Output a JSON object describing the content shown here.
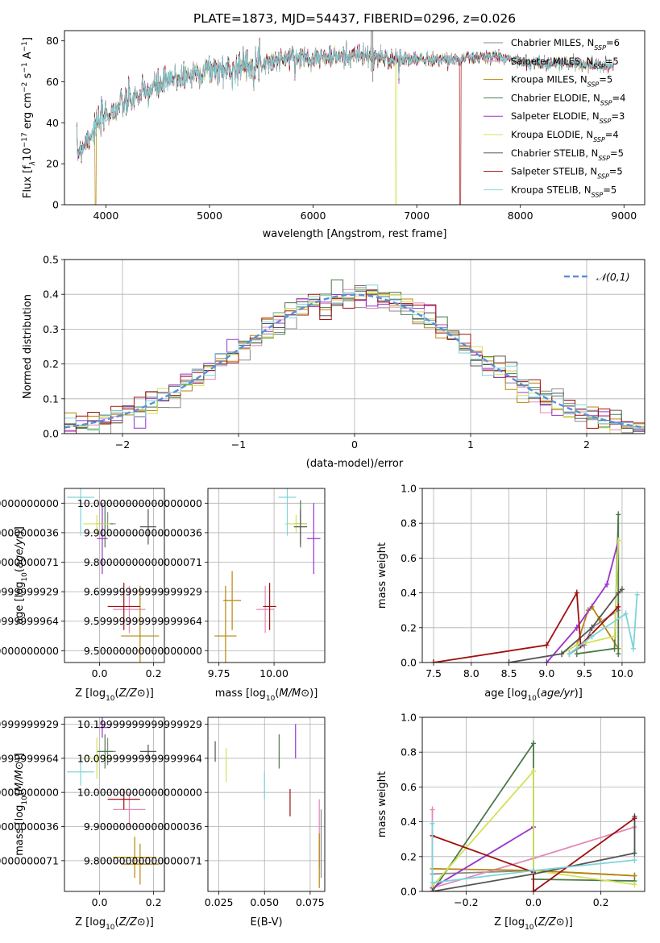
{
  "title": "PLATE=1873, MJD=54437, FIBERID=0296, z=0.026",
  "model_colors": [
    "#8a8a8a",
    "#e08ab8",
    "#b8860b",
    "#4a7a4a",
    "#9932cc",
    "#d4e157",
    "#555555",
    "#a01010",
    "#7fd3d8"
  ],
  "models": [
    {
      "name": "Chabrier MILES",
      "n": "6"
    },
    {
      "name": "Salpeter MILES",
      "n": "5"
    },
    {
      "name": "Kroupa MILES",
      "n": "5"
    },
    {
      "name": "Chabrier ELODIE",
      "n": "4"
    },
    {
      "name": "Salpeter ELODIE",
      "n": "3"
    },
    {
      "name": "Kroupa ELODIE",
      "n": "4"
    },
    {
      "name": "Chabrier STELIB",
      "n": "5"
    },
    {
      "name": "Salpeter STELIB",
      "n": "5"
    },
    {
      "name": "Kroupa STELIB",
      "n": "5"
    }
  ],
  "legend_suffix": "N",
  "legend_sub": "SSP",
  "chart_data": [
    {
      "id": "spectrum",
      "type": "line",
      "xlabel": "wavelength [Angstrom, rest frame]",
      "ylabel_parts": [
        "Flux [f",
        "λ",
        "10",
        "−17",
        " erg cm",
        "−2",
        " s",
        "−1",
        " A",
        "−1",
        "]"
      ],
      "xlim": [
        3600,
        9200
      ],
      "ylim": [
        0,
        85
      ],
      "xticks": [
        4000,
        5000,
        6000,
        7000,
        8000,
        9000
      ],
      "yticks": [
        0,
        20,
        40,
        60,
        80
      ],
      "continuum": [
        [
          3720,
          25
        ],
        [
          3800,
          31
        ],
        [
          3900,
          38
        ],
        [
          4000,
          44
        ],
        [
          4100,
          47
        ],
        [
          4200,
          50
        ],
        [
          4300,
          53
        ],
        [
          4400,
          55
        ],
        [
          4500,
          58
        ],
        [
          4600,
          60
        ],
        [
          4700,
          62
        ],
        [
          4800,
          63
        ],
        [
          4900,
          65
        ],
        [
          5000,
          66
        ],
        [
          5200,
          66
        ],
        [
          5400,
          69
        ],
        [
          5600,
          70
        ],
        [
          5800,
          72
        ],
        [
          6000,
          72
        ],
        [
          6200,
          72
        ],
        [
          6400,
          73
        ],
        [
          6600,
          72
        ],
        [
          6800,
          71
        ],
        [
          7000,
          71
        ],
        [
          7200,
          71
        ],
        [
          7400,
          71
        ],
        [
          7600,
          72
        ],
        [
          7800,
          72
        ],
        [
          8000,
          70
        ],
        [
          8200,
          69
        ],
        [
          8500,
          69
        ],
        [
          8800,
          68
        ],
        [
          8900,
          68
        ]
      ],
      "drops": [
        {
          "model": 2,
          "x": 3900
        },
        {
          "model": 5,
          "x": 6800
        },
        {
          "model": 7,
          "x": 7420
        }
      ],
      "spikes": [
        [
          6560,
          85
        ],
        [
          6575,
          80
        ]
      ]
    },
    {
      "id": "residuals",
      "type": "step histogram",
      "xlabel": "(data-model)/error",
      "ylabel": "Normed distribution",
      "xlim": [
        -2.5,
        2.5
      ],
      "ylim": [
        0,
        0.5
      ],
      "xticks": [
        -2,
        -1,
        0,
        1,
        2
      ],
      "yticks": [
        0.0,
        0.1,
        0.2,
        0.3,
        0.4,
        0.5
      ],
      "reference_label": "𝒩(0,1)",
      "bin_width": 0.1
    },
    {
      "id": "age_vs_Z",
      "type": "scatter errorbar",
      "xlabel": "Z [log10(Z/Z⊙)]",
      "ylabel": "age [log10(age/yr)]",
      "xlim": [
        -0.13,
        0.24
      ],
      "ylim": [
        9.46,
        10.05
      ],
      "xticks": [
        0.0,
        0.2
      ],
      "yticks": [
        9.5,
        9.6,
        9.7,
        9.8,
        9.9,
        10.0
      ],
      "points": [
        {
          "m": 0,
          "x": 0.03,
          "y": 9.93,
          "xe": 0.03,
          "ye": 0.04
        },
        {
          "m": 1,
          "x": 0.11,
          "y": 9.64,
          "xe": 0.06,
          "ye": 0.08
        },
        {
          "m": 2,
          "x": 0.15,
          "y": 9.55,
          "xe": 0.07,
          "ye": 0.17
        },
        {
          "m": 3,
          "x": 0.02,
          "y": 9.93,
          "xe": 0.03,
          "ye": 0.08
        },
        {
          "m": 4,
          "x": 0.01,
          "y": 9.88,
          "xe": 0.02,
          "ye": 0.12
        },
        {
          "m": 5,
          "x": -0.01,
          "y": 9.93,
          "xe": 0.05,
          "ye": 0.03
        },
        {
          "m": 6,
          "x": 0.18,
          "y": 9.92,
          "xe": 0.03,
          "ye": 0.06
        },
        {
          "m": 7,
          "x": 0.09,
          "y": 9.65,
          "xe": 0.06,
          "ye": 0.08
        },
        {
          "m": 8,
          "x": -0.07,
          "y": 10.02,
          "xe": 0.05,
          "ye": 0.13
        }
      ]
    },
    {
      "id": "age_vs_mass",
      "type": "scatter errorbar",
      "xlabel": "mass [log10(M/M⊙)]",
      "ylabel": "",
      "xlim": [
        9.7,
        10.23
      ],
      "ylim": [
        9.46,
        10.05
      ],
      "xticks": [
        9.75,
        10.0
      ],
      "yticks": [
        9.5,
        9.6,
        9.7,
        9.8,
        9.9,
        10.0
      ],
      "points": [
        {
          "m": 0,
          "x": 10.12,
          "y": 9.93,
          "xe": 0.03,
          "ye": 0.04
        },
        {
          "m": 1,
          "x": 9.96,
          "y": 9.64,
          "xe": 0.04,
          "ye": 0.08
        },
        {
          "m": 2,
          "x": 9.78,
          "y": 9.55,
          "xe": 0.05,
          "ye": 0.17
        },
        {
          "m": 3,
          "x": 10.12,
          "y": 9.93,
          "xe": 0.03,
          "ye": 0.08
        },
        {
          "m": 4,
          "x": 10.18,
          "y": 9.88,
          "xe": 0.03,
          "ye": 0.12
        },
        {
          "m": 5,
          "x": 10.1,
          "y": 9.93,
          "xe": 0.05,
          "ye": 0.03
        },
        {
          "m": 6,
          "x": 10.12,
          "y": 9.92,
          "xe": 0.03,
          "ye": 0.06
        },
        {
          "m": 7,
          "x": 9.98,
          "y": 9.65,
          "xe": 0.03,
          "ye": 0.08
        },
        {
          "m": 8,
          "x": 10.06,
          "y": 10.02,
          "xe": 0.04,
          "ye": 0.13
        },
        {
          "m": 2,
          "x": 9.81,
          "y": 9.67,
          "xe": 0.04,
          "ye": 0.1
        }
      ]
    },
    {
      "id": "weight_vs_age",
      "type": "line",
      "xlabel": "age [log10(age/yr)]",
      "ylabel": "mass weight",
      "xlim": [
        7.35,
        10.3
      ],
      "ylim": [
        0,
        1.0
      ],
      "xticks": [
        7.5,
        8.0,
        8.5,
        9.0,
        9.5,
        10.0
      ],
      "yticks": [
        0.0,
        0.2,
        0.4,
        0.6,
        0.8,
        1.0
      ],
      "series": [
        {
          "m": 0,
          "x": [
            9.3,
            9.5,
            9.6,
            9.95
          ],
          "y": [
            0.05,
            0.1,
            0.2,
            0.3
          ]
        },
        {
          "m": 1,
          "x": 9.0,
          "dummy": 0
        },
        {
          "m": 2,
          "x": [
            9.4,
            9.55,
            9.6,
            9.7,
            9.95
          ],
          "y": [
            0.1,
            0.3,
            0.32,
            0.25,
            0.08
          ]
        },
        {
          "m": 3,
          "x": [
            9.4,
            9.9,
            9.95,
            9.95
          ],
          "y": [
            0.05,
            0.08,
            0.85,
            0.05
          ]
        },
        {
          "m": 4,
          "x": [
            9.0,
            9.4,
            9.8,
            9.95
          ],
          "y": [
            0.0,
            0.2,
            0.45,
            0.7
          ]
        },
        {
          "m": 5,
          "x": [
            9.2,
            9.4,
            9.9,
            9.95
          ],
          "y": [
            0.05,
            0.1,
            0.15,
            0.7
          ]
        },
        {
          "m": 6,
          "x": [
            8.5,
            9.2,
            9.6,
            9.95,
            10.0
          ],
          "y": [
            0.0,
            0.05,
            0.2,
            0.4,
            0.42
          ]
        },
        {
          "m": 7,
          "x": [
            7.5,
            9.0,
            9.4,
            9.45,
            9.95
          ],
          "y": [
            0.0,
            0.1,
            0.4,
            0.1,
            0.32
          ]
        },
        {
          "m": 8,
          "x": [
            9.3,
            9.6,
            10.05,
            10.15,
            10.2
          ],
          "y": [
            0.05,
            0.15,
            0.28,
            0.08,
            0.39
          ]
        }
      ]
    },
    {
      "id": "mass_vs_Z",
      "type": "scatter errorbar",
      "xlabel": "Z [log10(Z/Z⊙)]",
      "ylabel": "mass [log10(M/M⊙)]",
      "xlim": [
        -0.13,
        0.24
      ],
      "ylim": [
        9.71,
        10.22
      ],
      "xticks": [
        0.0,
        0.2
      ],
      "yticks": [
        9.8,
        9.9,
        10.0,
        10.1,
        10.2
      ],
      "points": [
        {
          "m": 0,
          "x": 0.03,
          "y": 10.12,
          "xe": 0.03,
          "ye": 0.04
        },
        {
          "m": 1,
          "x": 0.11,
          "y": 9.95,
          "xe": 0.06,
          "ye": 0.05
        },
        {
          "m": 2,
          "x": 0.15,
          "y": 9.79,
          "xe": 0.07,
          "ye": 0.06
        },
        {
          "m": 3,
          "x": 0.02,
          "y": 10.12,
          "xe": 0.03,
          "ye": 0.05
        },
        {
          "m": 4,
          "x": 0.01,
          "y": 10.19,
          "xe": 0.03,
          "ye": 0.03
        },
        {
          "m": 5,
          "x": -0.01,
          "y": 10.1,
          "xe": 0.05,
          "ye": 0.06
        },
        {
          "m": 6,
          "x": 0.18,
          "y": 10.12,
          "xe": 0.03,
          "ye": 0.02
        },
        {
          "m": 7,
          "x": 0.09,
          "y": 9.98,
          "xe": 0.06,
          "ye": 0.03
        },
        {
          "m": 8,
          "x": -0.07,
          "y": 10.06,
          "xe": 0.05,
          "ye": 0.04
        },
        {
          "m": 2,
          "x": 0.13,
          "y": 9.81,
          "xe": 0.08,
          "ye": 0.06
        }
      ]
    },
    {
      "id": "mass_vs_ebv",
      "type": "scatter errorbar",
      "xlabel": "E(B-V)",
      "ylabel": "",
      "xlim": [
        0.019,
        0.083
      ],
      "ylim": [
        9.71,
        10.22
      ],
      "xticks": [
        0.025,
        0.05,
        0.075
      ],
      "yticks": [
        9.8,
        9.9,
        10.0,
        10.1,
        10.2
      ],
      "points": [
        {
          "m": 0,
          "x": 0.081,
          "y": 9.85,
          "xe": 0.0,
          "ye": 0.1
        },
        {
          "m": 1,
          "x": 0.08,
          "y": 9.88,
          "xe": 0.0,
          "ye": 0.1
        },
        {
          "m": 2,
          "x": 0.08,
          "y": 9.8,
          "xe": 0.0,
          "ye": 0.08
        },
        {
          "m": 3,
          "x": 0.058,
          "y": 10.12,
          "xe": 0.0,
          "ye": 0.05
        },
        {
          "m": 4,
          "x": 0.067,
          "y": 10.15,
          "xe": 0.0,
          "ye": 0.05
        },
        {
          "m": 5,
          "x": 0.029,
          "y": 10.08,
          "xe": 0.0,
          "ye": 0.05
        },
        {
          "m": 6,
          "x": 0.023,
          "y": 10.12,
          "xe": 0.0,
          "ye": 0.03
        },
        {
          "m": 7,
          "x": 0.064,
          "y": 9.97,
          "xe": 0.0,
          "ye": 0.04
        },
        {
          "m": 8,
          "x": 0.05,
          "y": 10.02,
          "xe": 0.0,
          "ye": 0.04
        }
      ]
    },
    {
      "id": "weight_vs_Z",
      "type": "line",
      "xlabel": "Z [log10(Z/Z⊙)]",
      "ylabel": "mass weight",
      "xlim": [
        -0.33,
        0.33
      ],
      "ylim": [
        0,
        1.0
      ],
      "xticks": [
        -0.2,
        0.0,
        0.2
      ],
      "yticks": [
        0.0,
        0.2,
        0.4,
        0.6,
        0.8,
        1.0
      ],
      "series": [
        {
          "m": 0,
          "x": [
            -0.3,
            0.0,
            0.3
          ],
          "y": [
            0.1,
            0.12,
            0.09
          ]
        },
        {
          "m": 1,
          "x": [
            -0.3,
            -0.3,
            0.0,
            0.3
          ],
          "y": [
            0.47,
            0.02,
            0.19,
            0.37
          ]
        },
        {
          "m": 2,
          "x": [
            -0.3,
            0.0,
            0.3
          ],
          "y": [
            0.13,
            0.12,
            0.09
          ]
        },
        {
          "m": 3,
          "x": [
            -0.3,
            0.0,
            0.0,
            0.3
          ],
          "y": [
            0.0,
            0.85,
            0.07,
            0.06
          ]
        },
        {
          "m": 4,
          "x": [
            -0.3,
            0.0
          ],
          "y": [
            0.02,
            0.37
          ]
        },
        {
          "m": 5,
          "x": [
            -0.3,
            0.0,
            0.0,
            0.3
          ],
          "y": [
            0.03,
            0.69,
            0.12,
            0.04
          ]
        },
        {
          "m": 6,
          "x": [
            -0.3,
            0.0,
            0.3,
            0.3
          ],
          "y": [
            0.0,
            0.1,
            0.22,
            0.43
          ]
        },
        {
          "m": 7,
          "x": [
            -0.3,
            0.0,
            0.0,
            0.3
          ],
          "y": [
            0.32,
            0.11,
            0.0,
            0.42
          ]
        },
        {
          "m": 8,
          "x": [
            -0.3,
            -0.3,
            0.0,
            0.3
          ],
          "y": [
            0.39,
            0.05,
            0.12,
            0.18
          ]
        }
      ]
    }
  ]
}
